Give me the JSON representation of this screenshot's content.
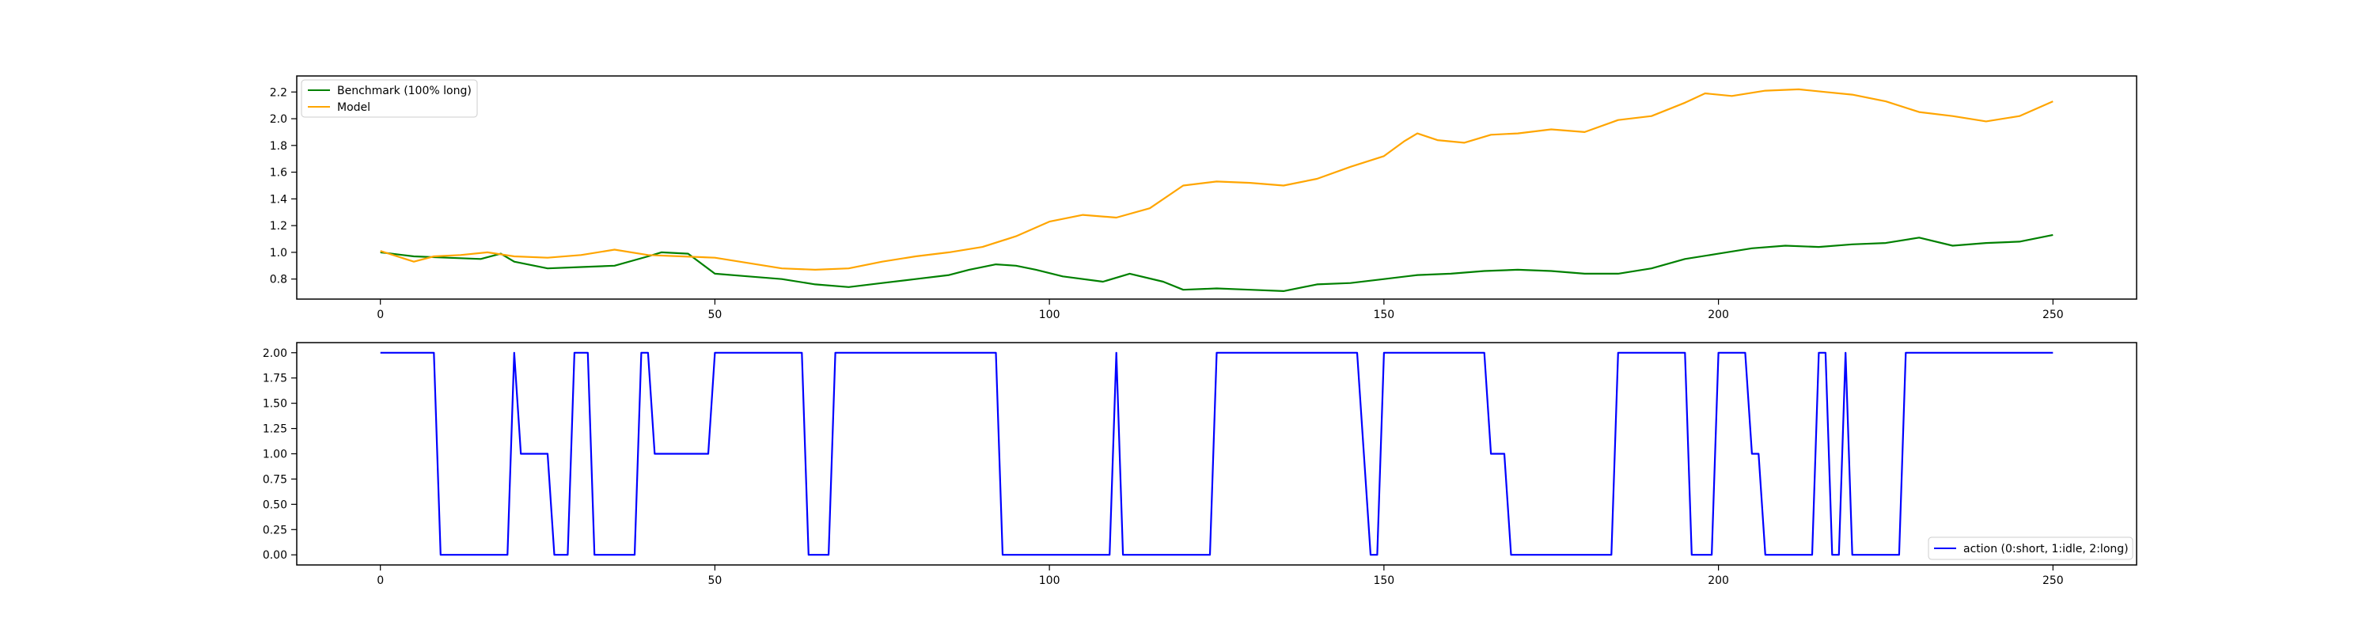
{
  "chart_data": [
    {
      "type": "line",
      "xlim": [
        -12.5,
        262.5
      ],
      "ylim": [
        0.65,
        2.32
      ],
      "xticks": [
        0,
        50,
        100,
        150,
        200,
        250
      ],
      "xtick_labels": [
        "0",
        "50",
        "100",
        "150",
        "200",
        "250"
      ],
      "yticks": [
        0.8,
        1.0,
        1.2,
        1.4,
        1.6,
        1.8,
        2.0,
        2.2
      ],
      "ytick_labels": [
        "0.8",
        "1.0",
        "1.2",
        "1.4",
        "1.6",
        "1.8",
        "2.0",
        "2.2"
      ],
      "grid": false,
      "legend_position": "upper-left",
      "series": [
        {
          "name": "Benchmark (100% long)",
          "color": "#008000",
          "points": [
            [
              0,
              1.0
            ],
            [
              5,
              0.97
            ],
            [
              10,
              0.96
            ],
            [
              15,
              0.95
            ],
            [
              18,
              0.99
            ],
            [
              20,
              0.93
            ],
            [
              25,
              0.88
            ],
            [
              30,
              0.89
            ],
            [
              35,
              0.9
            ],
            [
              40,
              0.97
            ],
            [
              42,
              1.0
            ],
            [
              46,
              0.99
            ],
            [
              50,
              0.84
            ],
            [
              55,
              0.82
            ],
            [
              60,
              0.8
            ],
            [
              65,
              0.76
            ],
            [
              70,
              0.74
            ],
            [
              75,
              0.77
            ],
            [
              80,
              0.8
            ],
            [
              85,
              0.83
            ],
            [
              88,
              0.87
            ],
            [
              92,
              0.91
            ],
            [
              95,
              0.9
            ],
            [
              98,
              0.87
            ],
            [
              102,
              0.82
            ],
            [
              108,
              0.78
            ],
            [
              112,
              0.84
            ],
            [
              117,
              0.78
            ],
            [
              120,
              0.72
            ],
            [
              125,
              0.73
            ],
            [
              130,
              0.72
            ],
            [
              135,
              0.71
            ],
            [
              140,
              0.76
            ],
            [
              145,
              0.77
            ],
            [
              150,
              0.8
            ],
            [
              155,
              0.83
            ],
            [
              160,
              0.84
            ],
            [
              165,
              0.86
            ],
            [
              170,
              0.87
            ],
            [
              175,
              0.86
            ],
            [
              180,
              0.84
            ],
            [
              185,
              0.84
            ],
            [
              190,
              0.88
            ],
            [
              195,
              0.95
            ],
            [
              200,
              0.99
            ],
            [
              205,
              1.03
            ],
            [
              210,
              1.05
            ],
            [
              215,
              1.04
            ],
            [
              220,
              1.06
            ],
            [
              225,
              1.07
            ],
            [
              230,
              1.11
            ],
            [
              235,
              1.05
            ],
            [
              240,
              1.07
            ],
            [
              245,
              1.08
            ],
            [
              250,
              1.13
            ]
          ]
        },
        {
          "name": "Model",
          "color": "#ffa500",
          "points": [
            [
              0,
              1.01
            ],
            [
              5,
              0.93
            ],
            [
              8,
              0.97
            ],
            [
              12,
              0.98
            ],
            [
              16,
              1.0
            ],
            [
              20,
              0.97
            ],
            [
              25,
              0.96
            ],
            [
              30,
              0.98
            ],
            [
              35,
              1.02
            ],
            [
              40,
              0.98
            ],
            [
              45,
              0.97
            ],
            [
              50,
              0.96
            ],
            [
              55,
              0.92
            ],
            [
              60,
              0.88
            ],
            [
              65,
              0.87
            ],
            [
              70,
              0.88
            ],
            [
              75,
              0.93
            ],
            [
              80,
              0.97
            ],
            [
              85,
              1.0
            ],
            [
              90,
              1.04
            ],
            [
              95,
              1.12
            ],
            [
              100,
              1.23
            ],
            [
              105,
              1.28
            ],
            [
              110,
              1.26
            ],
            [
              115,
              1.33
            ],
            [
              120,
              1.5
            ],
            [
              125,
              1.53
            ],
            [
              130,
              1.52
            ],
            [
              135,
              1.5
            ],
            [
              140,
              1.55
            ],
            [
              145,
              1.64
            ],
            [
              150,
              1.72
            ],
            [
              153,
              1.83
            ],
            [
              155,
              1.89
            ],
            [
              158,
              1.84
            ],
            [
              162,
              1.82
            ],
            [
              166,
              1.88
            ],
            [
              170,
              1.89
            ],
            [
              175,
              1.92
            ],
            [
              180,
              1.9
            ],
            [
              185,
              1.99
            ],
            [
              190,
              2.02
            ],
            [
              195,
              2.12
            ],
            [
              198,
              2.19
            ],
            [
              202,
              2.17
            ],
            [
              207,
              2.21
            ],
            [
              212,
              2.22
            ],
            [
              216,
              2.2
            ],
            [
              220,
              2.18
            ],
            [
              225,
              2.13
            ],
            [
              230,
              2.05
            ],
            [
              235,
              2.02
            ],
            [
              240,
              1.98
            ],
            [
              245,
              2.02
            ],
            [
              250,
              2.13
            ]
          ]
        }
      ]
    },
    {
      "type": "line",
      "xlim": [
        -12.5,
        262.5
      ],
      "ylim": [
        -0.1,
        2.1
      ],
      "xticks": [
        0,
        50,
        100,
        150,
        200,
        250
      ],
      "xtick_labels": [
        "0",
        "50",
        "100",
        "150",
        "200",
        "250"
      ],
      "yticks": [
        0,
        0.25,
        0.5,
        0.75,
        1.0,
        1.25,
        1.5,
        1.75,
        2.0
      ],
      "ytick_labels": [
        "0.00",
        "0.25",
        "0.50",
        "0.75",
        "1.00",
        "1.25",
        "1.50",
        "1.75",
        "2.00"
      ],
      "grid": false,
      "legend_position": "lower-right",
      "series": [
        {
          "name": "action (0:short, 1:idle, 2:long)",
          "color": "#0000ff",
          "points": [
            [
              0,
              2
            ],
            [
              8,
              2
            ],
            [
              9,
              0
            ],
            [
              19,
              0
            ],
            [
              20,
              2
            ],
            [
              21,
              1
            ],
            [
              25,
              1
            ],
            [
              26,
              0
            ],
            [
              28,
              0
            ],
            [
              29,
              2
            ],
            [
              31,
              2
            ],
            [
              32,
              0
            ],
            [
              38,
              0
            ],
            [
              39,
              2
            ],
            [
              40,
              2
            ],
            [
              41,
              1
            ],
            [
              49,
              1
            ],
            [
              50,
              2
            ],
            [
              63,
              2
            ],
            [
              64,
              0
            ],
            [
              67,
              0
            ],
            [
              68,
              2
            ],
            [
              92,
              2
            ],
            [
              93,
              0
            ],
            [
              109,
              0
            ],
            [
              110,
              2
            ],
            [
              111,
              0
            ],
            [
              124,
              0
            ],
            [
              125,
              2
            ],
            [
              146,
              2
            ],
            [
              147,
              1
            ],
            [
              148,
              0
            ],
            [
              149,
              0
            ],
            [
              150,
              2
            ],
            [
              165,
              2
            ],
            [
              166,
              1
            ],
            [
              168,
              1
            ],
            [
              169,
              0
            ],
            [
              184,
              0
            ],
            [
              185,
              2
            ],
            [
              195,
              2
            ],
            [
              196,
              0
            ],
            [
              199,
              0
            ],
            [
              200,
              2
            ],
            [
              204,
              2
            ],
            [
              205,
              1
            ],
            [
              206,
              1
            ],
            [
              207,
              0
            ],
            [
              214,
              0
            ],
            [
              215,
              2
            ],
            [
              216,
              2
            ],
            [
              217,
              0
            ],
            [
              218,
              0
            ],
            [
              219,
              2
            ],
            [
              220,
              0
            ],
            [
              227,
              0
            ],
            [
              228,
              2
            ],
            [
              250,
              2
            ]
          ]
        }
      ]
    }
  ]
}
